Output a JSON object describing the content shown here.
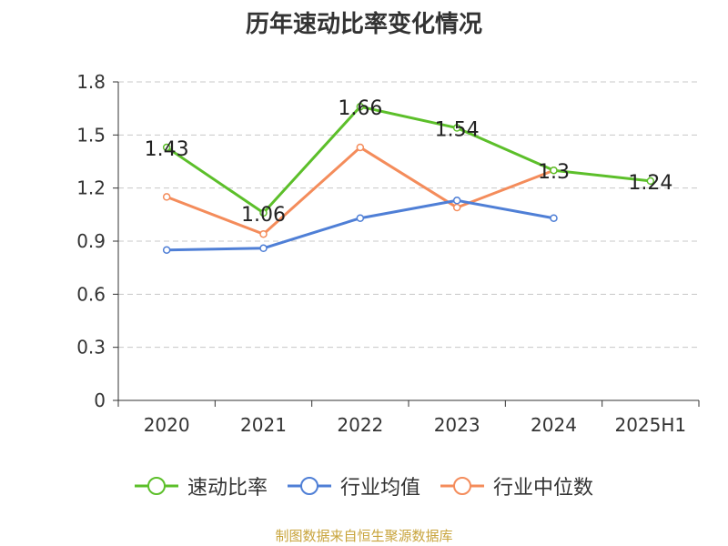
{
  "title": "历年速动比率变化情况",
  "footer": "制图数据来自恒生聚源数据库",
  "chart_data": {
    "type": "line",
    "title": "历年速动比率变化情况",
    "categories": [
      "2020",
      "2021",
      "2022",
      "2023",
      "2024",
      "2025H1"
    ],
    "ylim": [
      0,
      1.8
    ],
    "yticks": [
      "0",
      "0.3",
      "0.6",
      "0.9",
      "1.2",
      "1.5",
      "1.8"
    ],
    "grid": true,
    "legend_position": "bottom",
    "series": [
      {
        "name": "速动比率",
        "color": "#5cbf2a",
        "values": [
          1.43,
          1.06,
          1.66,
          1.54,
          1.3,
          1.24
        ],
        "labels": [
          "1.43",
          "1.06",
          "1.66",
          "1.54",
          "1.3",
          "1.24"
        ]
      },
      {
        "name": "行业均值",
        "color": "#4f7fd6",
        "values": [
          0.85,
          0.86,
          1.03,
          1.13,
          1.03,
          null
        ]
      },
      {
        "name": "行业中位数",
        "color": "#f48c5b",
        "values": [
          1.15,
          0.94,
          1.43,
          1.09,
          1.3,
          null
        ]
      }
    ]
  }
}
